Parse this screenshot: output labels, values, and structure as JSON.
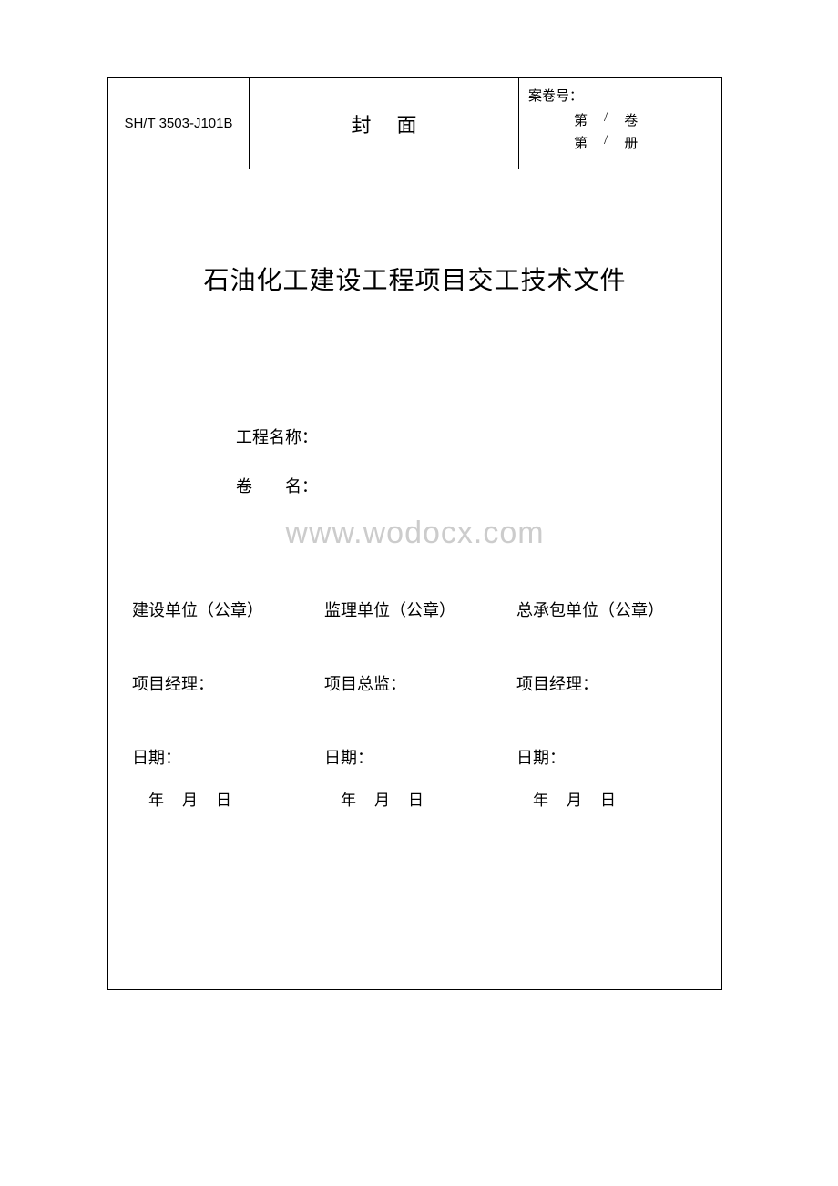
{
  "header": {
    "code": "SH/T 3503-J101B",
    "title": "封面",
    "case_label": "案卷号：",
    "vol_prefix": "第",
    "vol_sep": "/",
    "vol_unit": "卷",
    "book_unit": "册"
  },
  "main_title": "石油化工建设工程项目交工技术文件",
  "fields": {
    "project_name_label": "工程名称：",
    "volume_name_label": "卷　　名："
  },
  "watermark": "www.wodocx.com",
  "signatures": {
    "col1_unit": "建设单位（公章）",
    "col2_unit": "监理单位（公章）",
    "col3_unit": "总承包单位（公章）",
    "col1_role": "项目经理：",
    "col2_role": "项目总监：",
    "col3_role": "项目经理：",
    "date_label": "日期：",
    "year": "年",
    "month": "月",
    "day": "日"
  },
  "style": {
    "border_color": "#000000",
    "background": "#ffffff",
    "watermark_color": "#cccccc",
    "title_fontsize": 28,
    "body_fontsize": 18
  }
}
